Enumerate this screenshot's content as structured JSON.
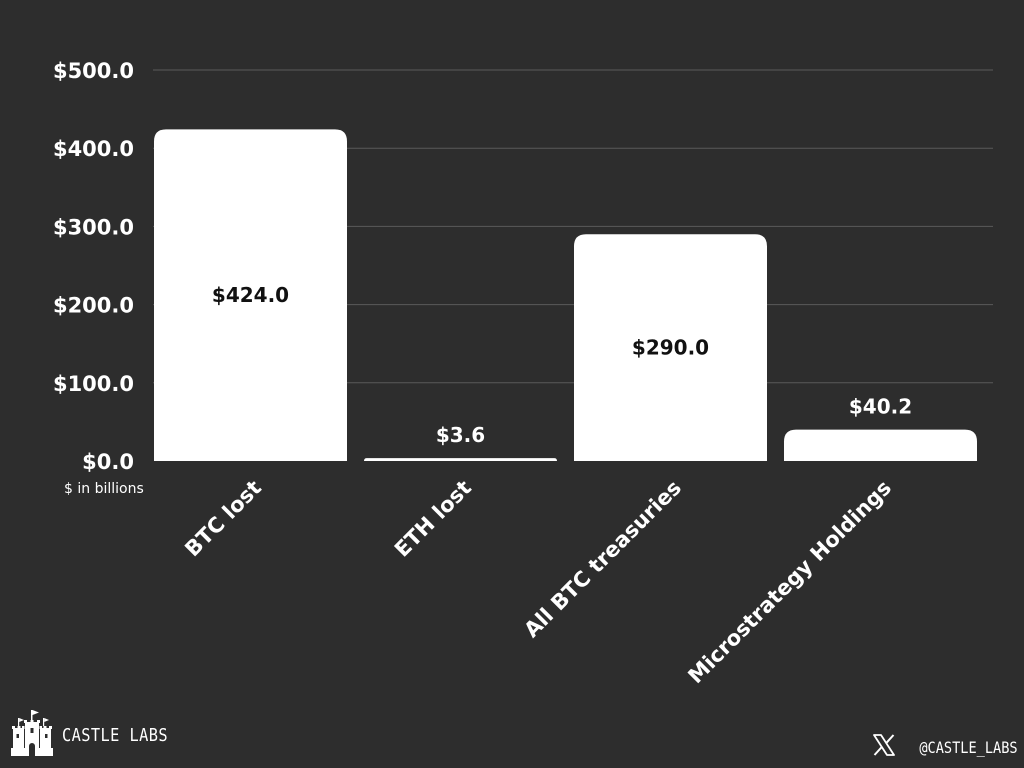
{
  "chart_data": {
    "type": "bar",
    "categories": [
      "BTC lost",
      "ETH lost",
      "All BTC treasuries",
      "Microstrategy Holdings"
    ],
    "values": [
      424.0,
      3.6,
      290.0,
      40.2
    ],
    "data_labels": [
      "$424.0",
      "$3.6",
      "$290.0",
      "$40.2"
    ],
    "y_ticks": [
      0,
      100,
      200,
      300,
      400,
      500
    ],
    "y_tick_labels": [
      "$0.0",
      "$100.0",
      "$200.0",
      "$300.0",
      "$400.0",
      "$500.0"
    ],
    "ylim": [
      0,
      500
    ],
    "ylabel": "$ in billions",
    "grid": true,
    "colors": {
      "background": "#2d2d2d",
      "bar": "#ffffff",
      "grid": "#5a5a5a",
      "text": "#ffffff",
      "label_inside": "#111111"
    }
  },
  "branding": {
    "logo_icon": "castle-icon",
    "name": "CASTLE LABS",
    "social_icon": "x-logo-icon",
    "handle": "@CASTLE_LABS"
  }
}
